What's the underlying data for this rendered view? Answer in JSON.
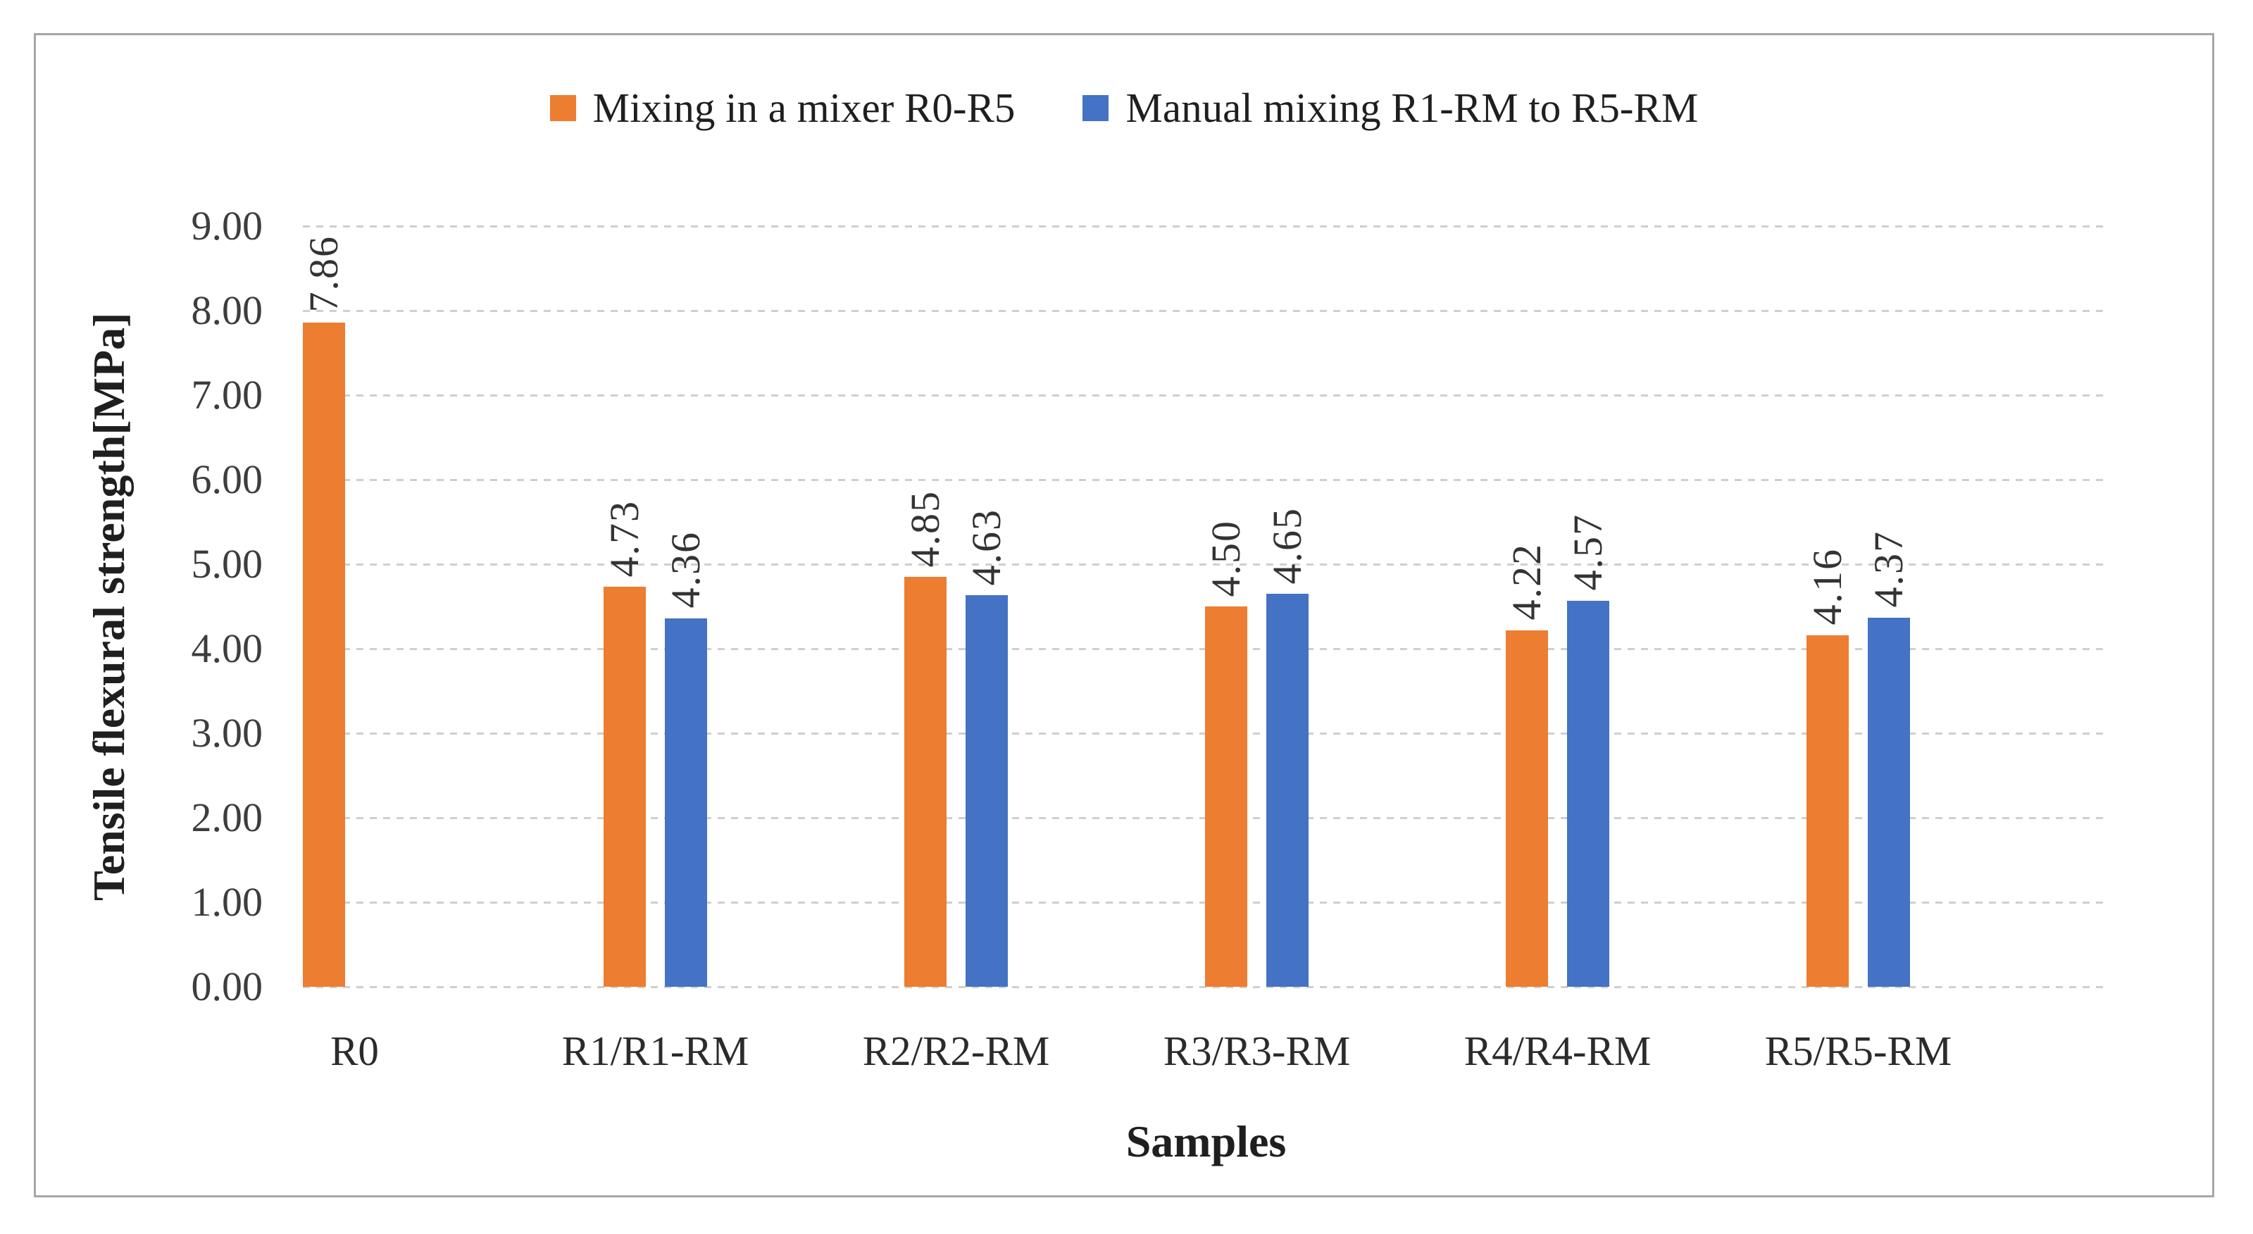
{
  "chart_data": {
    "type": "bar",
    "title": "",
    "xlabel": "Samples",
    "ylabel": "Tensile flexural strength[MPa]",
    "categories": [
      "R0",
      "R1/R1-RM",
      "R2/R2-RM",
      "R3/R3-RM",
      "R4/R4-RM",
      "R5/R5-RM"
    ],
    "series": [
      {
        "name": "Mixing in a mixer R0-R5",
        "color": "#ED7D31",
        "values": [
          7.86,
          4.73,
          4.85,
          4.5,
          4.22,
          4.16
        ]
      },
      {
        "name": "Manual mixing R1-RM to R5-RM",
        "color": "#4472C4",
        "values": [
          null,
          4.36,
          4.63,
          4.65,
          4.57,
          4.37
        ]
      }
    ],
    "data_labels": [
      [
        "7.86",
        "4.73",
        "4.85",
        "4.50",
        "4.22",
        "4.16"
      ],
      [
        null,
        "4.36",
        "4.63",
        "4.65",
        "4.57",
        "4.37"
      ]
    ],
    "ylim": [
      0,
      9
    ],
    "ytick_step": 1,
    "ytick_labels": [
      "0.00",
      "1.00",
      "2.00",
      "3.00",
      "4.00",
      "5.00",
      "6.00",
      "7.00",
      "8.00",
      "9.00"
    ],
    "grid": "horizontal-dashed",
    "legend_position": "top-center",
    "data_label_rotation_deg": 90
  },
  "styles": {
    "series_orange": "#ED7D31",
    "series_blue": "#4472C4",
    "gridline_color": "#CFCFCF",
    "frame_border_color": "#A6A6A6",
    "axis_text_color": "#3d3d3d",
    "title_text_color": "#1f1f1f",
    "background": "#ffffff"
  }
}
